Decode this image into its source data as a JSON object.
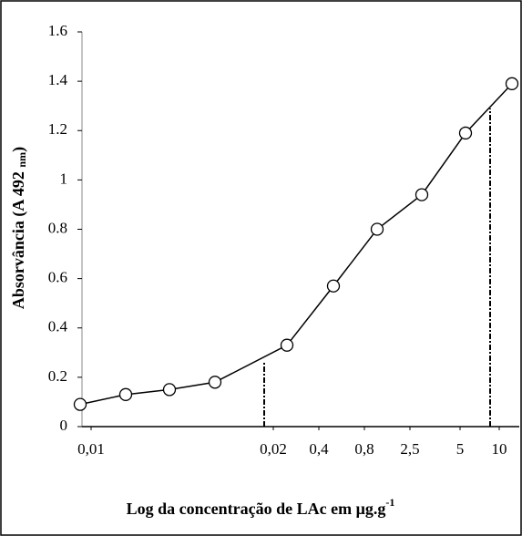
{
  "chart_data": {
    "type": "line",
    "y_label": {
      "text": "Absorvância (A 492 ",
      "sub": "nm",
      "end": ")"
    },
    "x_label": {
      "text": "Log da concentração de LAc em μg.g",
      "sup": "-1"
    },
    "x": [
      0,
      1,
      1.96,
      2.96,
      4.54,
      5.56,
      6.52,
      7.5,
      8.46,
      9.48
    ],
    "series": [
      {
        "color": "#000000",
        "values": [
          0.09,
          0.13,
          0.15,
          0.18,
          0.33,
          0.57,
          0.8,
          0.94,
          1.19,
          1.39
        ]
      }
    ],
    "xlim": [
      0,
      9.7
    ],
    "xticks": [
      {
        "value": 0.24,
        "label": "0,01"
      },
      {
        "value": 4.24,
        "label": "0,02"
      },
      {
        "value": 5.24,
        "label": "0,4"
      },
      {
        "value": 6.24,
        "label": "0,8"
      },
      {
        "value": 7.24,
        "label": "2,5"
      },
      {
        "value": 8.34,
        "label": "5"
      },
      {
        "value": 9.2,
        "label": "10"
      }
    ],
    "ylim": [
      0,
      1.6
    ],
    "yticks": [
      0,
      0.2,
      0.4,
      0.6,
      0.8,
      1,
      1.2,
      1.4,
      1.6
    ],
    "reference_lines": [
      {
        "x": 4.04,
        "y": 0.26
      },
      {
        "x": 9.0,
        "y": 1.29
      }
    ]
  }
}
